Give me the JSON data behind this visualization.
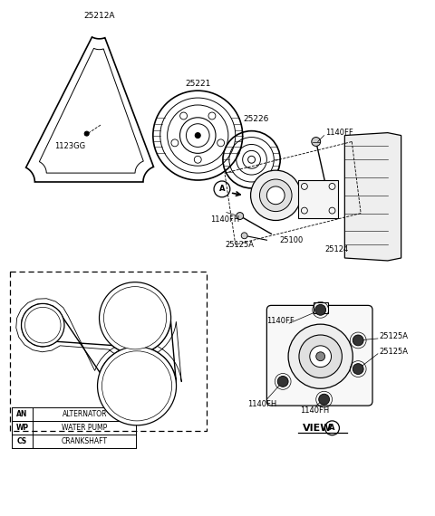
{
  "bg_color": "#ffffff",
  "line_color": "#000000",
  "legend_items": [
    [
      "AN",
      "ALTERNATOR"
    ],
    [
      "WP",
      "WATER PUMP"
    ],
    [
      "CS",
      "CRANKSHAFT"
    ]
  ]
}
